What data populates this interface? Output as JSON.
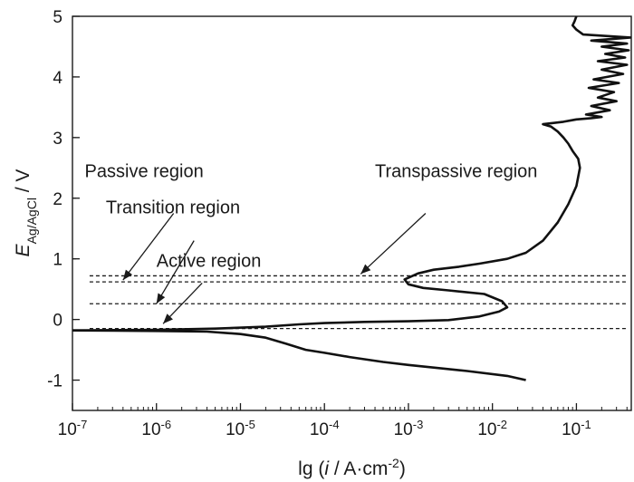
{
  "chart_data": {
    "type": "line",
    "xlabel_prefix": "lg (",
    "xlabel_var": "i",
    "xlabel_sep": " / A·cm",
    "xlabel_exp": "-2",
    "xlabel_suffix": ")",
    "ylabel_var": "E",
    "ylabel_sub": "Ag/AgCl",
    "ylabel_unit": " / V",
    "x_scale": "log",
    "xlim": [
      1e-07,
      0.45
    ],
    "ylim": [
      -1.5,
      5
    ],
    "x_ticks": [
      {
        "value": 1e-07,
        "base": "10",
        "exp": "-7"
      },
      {
        "value": 1e-06,
        "base": "10",
        "exp": "-6"
      },
      {
        "value": 1e-05,
        "base": "10",
        "exp": "-5"
      },
      {
        "value": 0.0001,
        "base": "10",
        "exp": "-4"
      },
      {
        "value": 0.001,
        "base": "10",
        "exp": "-3"
      },
      {
        "value": 0.01,
        "base": "10",
        "exp": "-2"
      },
      {
        "value": 0.1,
        "base": "10",
        "exp": "-1"
      }
    ],
    "y_ticks": [
      {
        "value": -1,
        "label": "-1"
      },
      {
        "value": 0,
        "label": "0"
      },
      {
        "value": 1,
        "label": "1"
      },
      {
        "value": 2,
        "label": "2"
      },
      {
        "value": 3,
        "label": "3"
      },
      {
        "value": 4,
        "label": "4"
      },
      {
        "value": 5,
        "label": "5"
      }
    ],
    "series": [
      {
        "cathodic_branch": [
          [
            1e-07,
            -0.18
          ],
          [
            1e-06,
            -0.19
          ],
          [
            4e-06,
            -0.2
          ],
          [
            1e-05,
            -0.24
          ],
          [
            2e-05,
            -0.3
          ],
          [
            3.5e-05,
            -0.4
          ],
          [
            6e-05,
            -0.5
          ],
          [
            0.0001,
            -0.55
          ],
          [
            0.0002,
            -0.62
          ],
          [
            0.0005,
            -0.7
          ],
          [
            0.001,
            -0.75
          ],
          [
            0.005,
            -0.85
          ],
          [
            0.015,
            -0.93
          ],
          [
            0.025,
            -1.0
          ]
        ],
        "anodic_branch": [
          [
            1e-07,
            -0.18
          ],
          [
            1e-06,
            -0.17
          ],
          [
            5e-06,
            -0.15
          ],
          [
            2e-05,
            -0.12
          ],
          [
            5e-05,
            -0.08
          ],
          [
            0.0001,
            -0.06
          ],
          [
            0.0003,
            -0.04
          ],
          [
            0.001,
            -0.03
          ],
          [
            0.003,
            -0.01
          ],
          [
            0.007,
            0.05
          ],
          [
            0.012,
            0.13
          ],
          [
            0.015,
            0.2
          ],
          [
            0.013,
            0.3
          ],
          [
            0.008,
            0.42
          ],
          [
            0.003,
            0.48
          ],
          [
            0.0015,
            0.52
          ],
          [
            0.001,
            0.58
          ],
          [
            0.0009,
            0.66
          ],
          [
            0.0013,
            0.76
          ],
          [
            0.002,
            0.82
          ],
          [
            0.004,
            0.87
          ],
          [
            0.007,
            0.92
          ],
          [
            0.015,
            1.0
          ],
          [
            0.025,
            1.1
          ],
          [
            0.04,
            1.3
          ],
          [
            0.06,
            1.6
          ],
          [
            0.08,
            1.9
          ],
          [
            0.1,
            2.2
          ],
          [
            0.11,
            2.5
          ],
          [
            0.105,
            2.65
          ],
          [
            0.09,
            2.78
          ],
          [
            0.08,
            2.9
          ],
          [
            0.07,
            3.0
          ],
          [
            0.06,
            3.1
          ],
          [
            0.05,
            3.18
          ],
          [
            0.04,
            3.22
          ],
          [
            0.07,
            3.26
          ],
          [
            0.1,
            3.3
          ],
          [
            0.15,
            3.32
          ],
          [
            0.2,
            3.34
          ],
          [
            0.13,
            3.38
          ],
          [
            0.25,
            3.45
          ],
          [
            0.15,
            3.52
          ],
          [
            0.3,
            3.6
          ],
          [
            0.18,
            3.66
          ],
          [
            0.28,
            3.75
          ],
          [
            0.14,
            3.82
          ],
          [
            0.32,
            3.9
          ],
          [
            0.16,
            3.96
          ],
          [
            0.36,
            4.05
          ],
          [
            0.2,
            4.12
          ],
          [
            0.4,
            4.2
          ],
          [
            0.18,
            4.26
          ],
          [
            0.38,
            4.32
          ],
          [
            0.22,
            4.38
          ],
          [
            0.42,
            4.44
          ],
          [
            0.2,
            4.5
          ],
          [
            0.4,
            4.55
          ],
          [
            0.15,
            4.6
          ],
          [
            0.44,
            4.65
          ],
          [
            0.12,
            4.7
          ],
          [
            0.1,
            4.78
          ],
          [
            0.09,
            4.85
          ],
          [
            0.095,
            4.92
          ],
          [
            0.1,
            5.0
          ]
        ]
      }
    ],
    "reference_lines": [
      0.72,
      0.62,
      0.26,
      -0.15
    ],
    "annotations": [
      {
        "text": "Passive region",
        "label_x": 1.4e-07,
        "label_y": 2.35,
        "tail": [
          1.6e-06,
          1.75
        ],
        "head": [
          4e-07,
          0.65
        ]
      },
      {
        "text": "Transition region",
        "label_x": 2.5e-07,
        "label_y": 1.75,
        "tail": [
          2.8e-06,
          1.3
        ],
        "head": [
          1e-06,
          0.26
        ]
      },
      {
        "text": "Active region",
        "label_x": 1e-06,
        "label_y": 0.87,
        "tail": [
          3.5e-06,
          0.6
        ],
        "head": [
          1.2e-06,
          -0.07
        ]
      },
      {
        "text": "Transpassive region",
        "label_x": 0.0004,
        "label_y": 2.35,
        "tail": [
          0.0016,
          1.75
        ],
        "head": [
          0.00027,
          0.75
        ]
      }
    ],
    "grid": false,
    "legend": "none"
  }
}
